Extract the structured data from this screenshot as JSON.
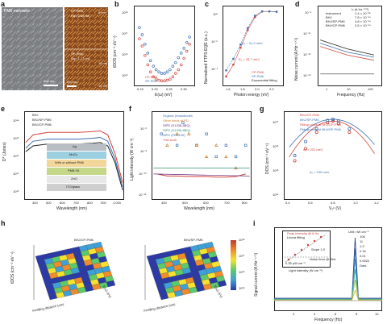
{
  "panels": {
    "a": {
      "letter": "a",
      "left_title": "PM6 nanowire",
      "left_scale": "500 nm",
      "right_top_title": "CP-PM6",
      "right_top_rq": "Rq= 2.60 nm",
      "right_top_scale_top": "8 nm",
      "right_mid_title": "SP-PM6",
      "right_mid_rq": "Rq= 1.17 nm",
      "right_mid_scale_top": "10 nm",
      "right_scale": "200 nm",
      "right_bottom_scale": "−10 nm"
    },
    "b": {
      "letter": "b",
      "ylabel": "tDOS (cm⁻³ eV⁻¹)",
      "xlabel": "E(ω) (eV)",
      "xticks": [
        "0.15",
        "0.20",
        "0.25",
        "0.30"
      ],
      "yticks": [
        "10¹⁸",
        "10¹⁷",
        "10¹⁶",
        "10¹⁵"
      ],
      "legend": [
        "CP-PM6",
        "SP-PM6"
      ]
    },
    "c": {
      "letter": "c",
      "ylabel": "Normalized FTPS-EQE (a.u.)",
      "xlabel": "Photon energy (eV)",
      "xticks": [
        "1.6",
        "1.8",
        "2.0",
        "2.2"
      ],
      "yticks": [
        "10⁰",
        "10⁻²",
        "10⁻⁴"
      ],
      "ann_blue": "Eᵤ = 31.2 meV",
      "ann_red": "Eᵤ = 28.7 meV",
      "legend": [
        "CP-PM6",
        "SP-PM6",
        "Exponential fitting"
      ]
    },
    "d": {
      "letter": "d",
      "ylabel": "Noise current (A Hz⁻¹ᐟ²)",
      "xlabel": "Frequency (Hz)",
      "xticks": [
        "1",
        "10",
        "100"
      ],
      "yticks": [
        "10⁻⁹",
        "10⁻¹¹",
        "10⁻¹³",
        "10⁻¹⁵"
      ],
      "legend_header": "iₙ (A Hz⁻¹ᐟ²)",
      "legend": [
        {
          "name": "Instrument",
          "value": "1.4 × 10⁻¹⁵"
        },
        {
          "name": "BHJ",
          "value": "7.8 × 10⁻¹⁴"
        },
        {
          "name": "BHJ/SP-PM6",
          "value": "4.8 × 10⁻¹⁴"
        },
        {
          "name": "BHJ/CP-PM6",
          "value": "2.6 × 10⁻¹⁴"
        }
      ]
    },
    "e": {
      "letter": "e",
      "ylabel": "D* (Jones)",
      "xlabel": "Wavelength (nm)",
      "xticks": [
        "400",
        "500",
        "600",
        "700",
        "800",
        "900",
        "1,000"
      ],
      "yticks": [
        "10¹⁴",
        "10¹³",
        "10¹²",
        "10¹¹",
        "10¹⁰"
      ],
      "legend": [
        "BHJ",
        "BHJ/SP-PM6",
        "BHJ/CP-PM6"
      ],
      "stack": [
        "Ag",
        "MoO₃",
        "With or without PM6",
        "PM6:Y6",
        "ZnO",
        "ITO/glass"
      ]
    },
    "f": {
      "letter": "f",
      "ylabel": "Light intensity (W cm⁻²)",
      "xlabel": "Wavelength (nm)",
      "xticks": [
        "400",
        "500",
        "600",
        "700",
        "800"
      ],
      "yticks": [
        "10⁻⁶",
        "10⁻⁸",
        "10⁻¹⁰",
        "10⁻¹²"
      ],
      "legend": [
        "Organic photodiodes",
        "Other kinds of PD",
        "SiPD (S1336-8BQ)",
        "SiPD (S1336-8BQ)",
        "SiPD (FDS100)",
        "This work"
      ]
    },
    "g": {
      "letter": "g",
      "ylabel": "DOS (cm⁻³ eV⁻¹)",
      "xlabel": "Vₒᶜ (V)",
      "xticks": [
        "0.4",
        "0.6",
        "0.8",
        "1.0",
        "1.2"
      ],
      "yticks": [
        "10¹⁷",
        "10¹⁶",
        "10¹⁵",
        "10¹⁴"
      ],
      "legend": [
        "BHJ/CP-PM6",
        "BHJ/SP-PM6",
        "Fitting curve of BHJ/CP-PM6",
        "Fitting curve of BHJ/SP-PM6"
      ],
      "ann_red": "σᵤ = 202 meV",
      "ann_blue": "σᵤ = 235 meV"
    },
    "h": {
      "letter": "h",
      "zlabel": "tDOS (cm⁻³ eV⁻¹)",
      "xlabel1": "Profiling distance (nm)",
      "elabel1": "E(ω) (eV)",
      "xlabel2": "Profiling distance (nm)",
      "elabel2": "E(ω) (eV)",
      "title1": "BHJ/CP-PM6",
      "title2": "BHJ/SP-PM6",
      "colorbar_ticks": [
        "10¹⁸",
        "10¹⁷",
        "10¹⁶",
        "10¹⁵"
      ],
      "e_ticks": [
        "0.15",
        "0.20",
        "0.25",
        "0.30"
      ]
    },
    "i": {
      "letter": "i",
      "ylabel": "Signal current (A Hz⁻¹ᐟ²)",
      "xlabel": "Frequency (Hz)",
      "xticks": [
        "2",
        "4",
        "6",
        "8",
        "10"
      ],
      "inset_legend": [
        "Peak intensity @ 8 Hz",
        "Linear fitting"
      ],
      "inset_slope": "Slope 1.0",
      "inset_noise": "Noise floor @ 8Hz",
      "inset_min": "0.35 pW cm⁻²",
      "inset_xlabel": "Light intensity (W cm⁻²)",
      "legend_header": "Unit: nW cm⁻²",
      "legend": [
        "106",
        "11",
        "1.3",
        "0.16",
        "0.01",
        "0.0022",
        "Dark"
      ]
    }
  },
  "chart_data": [
    {
      "type": "scatter",
      "panel": "b",
      "xlabel": "E(ω) (eV)",
      "ylabel": "tDOS (cm⁻³ eV⁻¹)",
      "series": [
        {
          "name": "CP-PM6",
          "x": [
            0.14,
            0.15,
            0.16,
            0.17,
            0.18,
            0.19,
            0.2,
            0.21,
            0.22,
            0.23,
            0.24,
            0.25,
            0.26,
            0.27,
            0.28,
            0.29,
            0.3,
            0.31,
            0.32
          ],
          "y": [
            1e+17,
            5e+16,
            2e+16,
            8000000000000000.0,
            4000000000000000.0,
            2500000000000000.0,
            2000000000000000.0,
            1800000000000000.0,
            1700000000000000.0,
            1700000000000000.0,
            1800000000000000.0,
            2000000000000000.0,
            2500000000000000.0,
            3500000000000000.0,
            5000000000000000.0,
            8000000000000000.0,
            1.5e+16,
            3e+16,
            6e+16
          ]
        },
        {
          "name": "SP-PM6",
          "x": [
            0.14,
            0.15,
            0.16,
            0.17,
            0.18,
            0.19,
            0.2,
            0.21,
            0.22,
            0.23,
            0.24,
            0.25,
            0.26,
            0.27,
            0.28,
            0.29,
            0.3,
            0.31,
            0.32
          ],
          "y": [
            3e+17,
            1.5e+17,
            6e+16,
            2.5e+16,
            1.2e+16,
            7000000000000000.0,
            5000000000000000.0,
            4000000000000000.0,
            3500000000000000.0,
            3500000000000000.0,
            4000000000000000.0,
            5000000000000000.0,
            7000000000000000.0,
            1e+16,
            1.6e+16,
            2.5e+16,
            4e+16,
            7e+16,
            1.2e+17
          ]
        }
      ]
    },
    {
      "type": "line",
      "panel": "c",
      "xlabel": "Photon energy (eV)",
      "ylabel": "Normalized FTPS-EQE (a.u.)",
      "series": [
        {
          "name": "CP-PM6",
          "x": [
            1.5,
            1.6,
            1.7,
            1.8,
            1.9,
            2.0,
            2.1,
            2.2
          ],
          "y": [
            3e-05,
            0.0002,
            0.003,
            0.05,
            0.4,
            1,
            1,
            0.95
          ]
        },
        {
          "name": "SP-PM6",
          "x": [
            1.5,
            1.6,
            1.7,
            1.8,
            1.9,
            2.0,
            2.1,
            2.2
          ],
          "y": [
            8e-05,
            0.0005,
            0.005,
            0.07,
            0.5,
            1,
            1,
            0.95
          ]
        }
      ]
    },
    {
      "type": "line",
      "panel": "d",
      "xlabel": "Frequency (Hz)",
      "ylabel": "Noise current (A Hz⁻¹ᐟ²)",
      "series": [
        {
          "name": "Instrument",
          "x": [
            1,
            10,
            100
          ],
          "y": [
            1.4e-15,
            1.4e-15,
            1.4e-15
          ]
        },
        {
          "name": "BHJ",
          "x": [
            1,
            10,
            100
          ],
          "y": [
            2e-12,
            3e-13,
            8e-14
          ]
        },
        {
          "name": "BHJ/SP-PM6",
          "x": [
            1,
            10,
            100
          ],
          "y": [
            1e-12,
            1.5e-13,
            5e-14
          ]
        },
        {
          "name": "BHJ/CP-PM6",
          "x": [
            1,
            10,
            100
          ],
          "y": [
            5e-13,
            8e-14,
            2.6e-14
          ]
        }
      ]
    },
    {
      "type": "line",
      "panel": "e",
      "xlabel": "Wavelength (nm)",
      "ylabel": "D* (Jones)",
      "series": [
        {
          "name": "BHJ",
          "x": [
            350,
            400,
            500,
            600,
            700,
            800,
            850,
            900,
            950,
            1000
          ],
          "y": [
            2000000000000.0,
            4000000000000.0,
            5000000000000.0,
            5000000000000.0,
            5000000000000.0,
            5500000000000.0,
            6000000000000.0,
            4000000000000.0,
            500000000000.0,
            20000000000.0
          ]
        },
        {
          "name": "BHJ/SP-PM6",
          "x": [
            350,
            400,
            500,
            600,
            700,
            800,
            850,
            900,
            950,
            1000
          ],
          "y": [
            3000000000000.0,
            7000000000000.0,
            9000000000000.0,
            9000000000000.0,
            9000000000000.0,
            10000000000000.0,
            11000000000000.0,
            7000000000000.0,
            800000000000.0,
            30000000000.0
          ]
        },
        {
          "name": "BHJ/CP-PM6",
          "x": [
            350,
            400,
            500,
            600,
            700,
            800,
            850,
            900,
            950,
            1000
          ],
          "y": [
            6000000000000.0,
            15000000000000.0,
            20000000000000.0,
            20000000000000.0,
            20000000000000.0,
            22000000000000.0,
            24000000000000.0,
            15000000000000.0,
            1500000000000.0,
            50000000000.0
          ]
        }
      ]
    },
    {
      "type": "scatter",
      "panel": "f",
      "xlabel": "Wavelength (nm)",
      "ylabel": "Light intensity (W cm⁻²)",
      "series": [
        {
          "name": "Organic photodiodes",
          "x": [
            420,
            500,
            530,
            600,
            650,
            700,
            750,
            800,
            850
          ],
          "y": [
            1e-07,
            1e-08,
            1e-06,
            1e-08,
            1e-07,
            1e-09,
            1e-08,
            1e-09,
            1e-08
          ]
        },
        {
          "name": "Other kinds of PD",
          "x": [
            450,
            500,
            560,
            600,
            650,
            700,
            750,
            800
          ],
          "y": [
            1e-08,
            1e-07,
            1e-07,
            1e-08,
            1e-09,
            1e-08,
            1e-09,
            1e-10
          ]
        },
        {
          "name": "This work",
          "x": [
            400,
            450,
            500,
            550,
            600,
            650,
            700,
            750,
            800,
            850
          ],
          "y": [
            3e-11,
            2e-11,
            2e-11,
            1.8e-11,
            1.8e-11,
            1.8e-11,
            1.6e-11,
            1.6e-11,
            1.8e-11,
            3e-11
          ]
        }
      ]
    },
    {
      "type": "scatter",
      "panel": "g",
      "xlabel": "Vₒᶜ (V)",
      "ylabel": "DOS (cm⁻³ eV⁻¹)",
      "series": [
        {
          "name": "BHJ/CP-PM6",
          "x": [
            0.45,
            0.55,
            0.65,
            0.75,
            0.8,
            0.85,
            0.95
          ],
          "y": [
            3000000000000000.0,
            1e+16,
            5e+16,
            1.3e+17,
            1.5e+17,
            1.2e+17,
            5e+16
          ]
        },
        {
          "name": "BHJ/SP-PM6",
          "x": [
            0.45,
            0.55,
            0.65,
            0.75,
            0.8,
            0.85,
            0.95
          ],
          "y": [
            5000000000000000.0,
            2e+16,
            7e+16,
            1.6e+17,
            1.8e+17,
            1.5e+17,
            7e+16
          ]
        }
      ]
    },
    {
      "type": "line",
      "panel": "i",
      "xlabel": "Frequency (Hz)",
      "ylabel": "Signal current (A Hz⁻¹ᐟ²)",
      "series": [
        {
          "name": "106",
          "x": [
            8
          ],
          "y": [
            1e-08
          ]
        },
        {
          "name": "11",
          "x": [
            8
          ],
          "y": [
            1e-09
          ]
        },
        {
          "name": "1.3",
          "x": [
            8
          ],
          "y": [
            1e-10
          ]
        },
        {
          "name": "0.16",
          "x": [
            8
          ],
          "y": [
            1e-11
          ]
        },
        {
          "name": "0.01",
          "x": [
            8
          ],
          "y": [
            1e-12
          ]
        },
        {
          "name": "0.0022",
          "x": [
            8
          ],
          "y": [
            1e-13
          ]
        },
        {
          "name": "Dark",
          "x": [
            8
          ],
          "y": [
            1e-14
          ]
        }
      ]
    }
  ]
}
